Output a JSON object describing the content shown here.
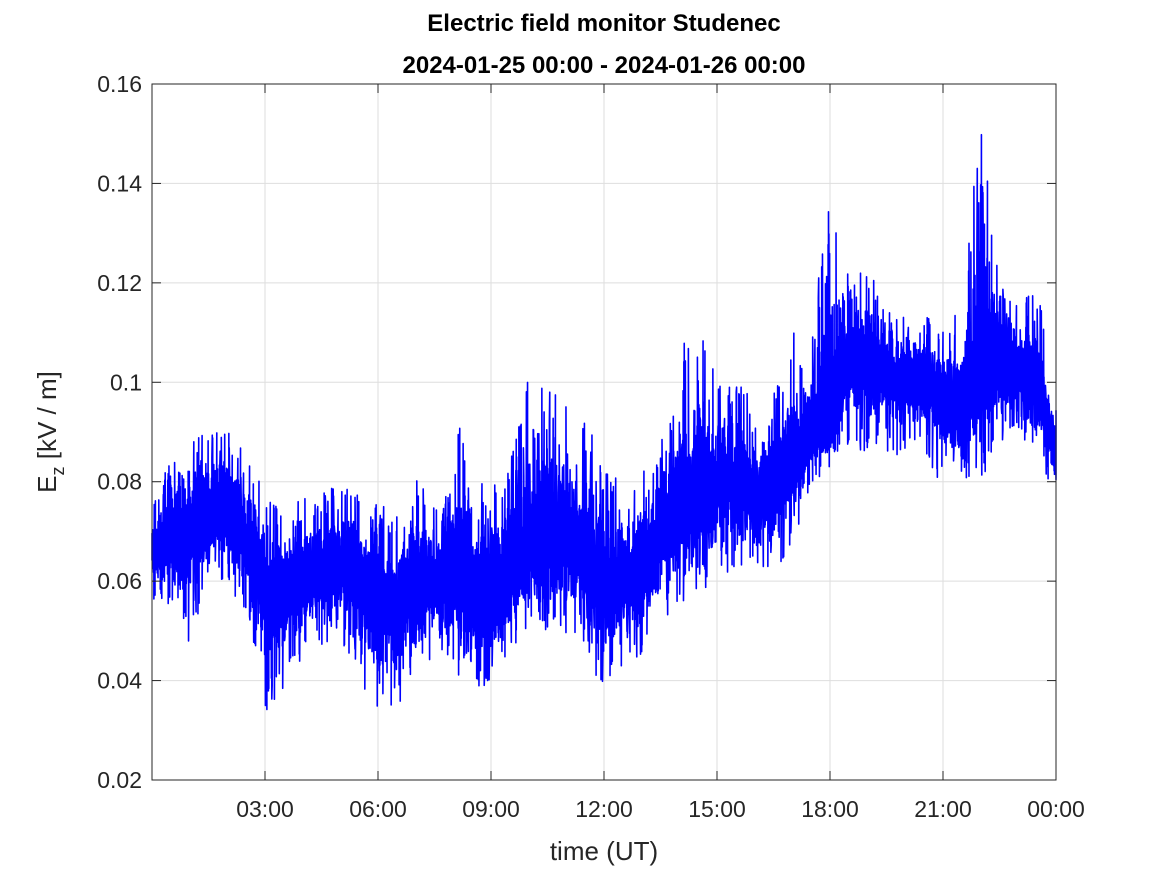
{
  "chart_data": {
    "type": "line",
    "title": "Electric field monitor Studenec",
    "subtitle": "2024-01-25 00:00 - 2024-01-26 00:00",
    "xlabel": "time (UT)",
    "ylabel_main": "E",
    "ylabel_sub": "z",
    "ylabel_unit": " [kV / m]",
    "xlim": [
      "2024-01-25 00:00",
      "2024-01-26 00:00"
    ],
    "ylim": [
      0.02,
      0.16
    ],
    "x_ticks": [
      "03:00",
      "06:00",
      "09:00",
      "12:00",
      "15:00",
      "18:00",
      "21:00",
      "00:00"
    ],
    "y_ticks": [
      "0.02",
      "0.04",
      "0.06",
      "0.08",
      "0.1",
      "0.12",
      "0.14",
      "0.16"
    ],
    "grid": true,
    "legend": "none",
    "series": [
      {
        "color": "#0000ff",
        "x": [
          "2024-01-25 00:00",
          "2024-01-25 00:30",
          "2024-01-25 01:00",
          "2024-01-25 01:30",
          "2024-01-25 02:00",
          "2024-01-25 02:30",
          "2024-01-25 03:00",
          "2024-01-25 03:30",
          "2024-01-25 04:00",
          "2024-01-25 04:30",
          "2024-01-25 05:00",
          "2024-01-25 05:30",
          "2024-01-25 06:00",
          "2024-01-25 06:30",
          "2024-01-25 07:00",
          "2024-01-25 07:30",
          "2024-01-25 08:00",
          "2024-01-25 08:30",
          "2024-01-25 09:00",
          "2024-01-25 09:30",
          "2024-01-25 10:00",
          "2024-01-25 10:30",
          "2024-01-25 11:00",
          "2024-01-25 11:30",
          "2024-01-25 12:00",
          "2024-01-25 12:30",
          "2024-01-25 13:00",
          "2024-01-25 13:30",
          "2024-01-25 14:00",
          "2024-01-25 14:30",
          "2024-01-25 15:00",
          "2024-01-25 15:30",
          "2024-01-25 16:00",
          "2024-01-25 16:30",
          "2024-01-25 17:00",
          "2024-01-25 17:30",
          "2024-01-25 18:00",
          "2024-01-25 18:30",
          "2024-01-25 19:00",
          "2024-01-25 19:30",
          "2024-01-25 20:00",
          "2024-01-25 20:30",
          "2024-01-25 21:00",
          "2024-01-25 21:30",
          "2024-01-25 22:00",
          "2024-01-25 22:30",
          "2024-01-25 23:00",
          "2024-01-25 23:30",
          "2024-01-26 00:00"
        ],
        "y": [
          0.066,
          0.068,
          0.071,
          0.072,
          0.074,
          0.068,
          0.058,
          0.057,
          0.059,
          0.062,
          0.064,
          0.06,
          0.056,
          0.054,
          0.061,
          0.06,
          0.062,
          0.058,
          0.055,
          0.062,
          0.066,
          0.068,
          0.069,
          0.064,
          0.058,
          0.06,
          0.061,
          0.068,
          0.072,
          0.079,
          0.078,
          0.08,
          0.077,
          0.079,
          0.082,
          0.088,
          0.093,
          0.103,
          0.104,
          0.102,
          0.1,
          0.101,
          0.097,
          0.094,
          0.1,
          0.105,
          0.102,
          0.1,
          0.085
        ],
        "y_max": [
          0.078,
          0.084,
          0.087,
          0.092,
          0.092,
          0.088,
          0.079,
          0.074,
          0.077,
          0.078,
          0.08,
          0.079,
          0.076,
          0.073,
          0.082,
          0.075,
          0.097,
          0.084,
          0.078,
          0.085,
          0.101,
          0.102,
          0.095,
          0.095,
          0.084,
          0.079,
          0.085,
          0.09,
          0.106,
          0.115,
          0.101,
          0.102,
          0.095,
          0.098,
          0.11,
          0.113,
          0.137,
          0.126,
          0.124,
          0.115,
          0.113,
          0.114,
          0.112,
          0.116,
          0.154,
          0.121,
          0.117,
          0.121,
          0.095
        ],
        "y_min": [
          0.055,
          0.055,
          0.045,
          0.061,
          0.059,
          0.052,
          0.033,
          0.037,
          0.044,
          0.047,
          0.048,
          0.04,
          0.032,
          0.034,
          0.037,
          0.045,
          0.042,
          0.031,
          0.04,
          0.044,
          0.05,
          0.049,
          0.049,
          0.046,
          0.037,
          0.043,
          0.045,
          0.052,
          0.055,
          0.056,
          0.058,
          0.063,
          0.062,
          0.063,
          0.065,
          0.08,
          0.081,
          0.087,
          0.085,
          0.086,
          0.084,
          0.085,
          0.079,
          0.08,
          0.08,
          0.087,
          0.089,
          0.086,
          0.076
        ]
      }
    ]
  }
}
